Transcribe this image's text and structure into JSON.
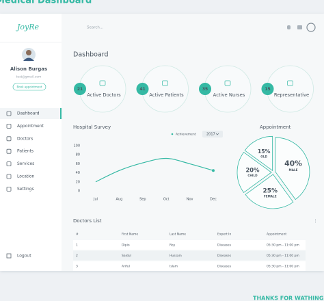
{
  "banner": {
    "title": "Medical Dashboard",
    "footer": "THANKS FOR WATHING"
  },
  "sidebar": {
    "logo": "JoyRe",
    "user": {
      "name": "Alison Burgas",
      "email": "test@gmail.com",
      "button": "Book appointment"
    },
    "menu": [
      "Dashboard",
      "Appointment",
      "Doctors",
      "Patients",
      "Services",
      "Location",
      "Settings"
    ],
    "logout": "Logout"
  },
  "topbar": {
    "search": "Search..."
  },
  "heading": "Dashboard",
  "stats": [
    {
      "value": 21,
      "label": "Active Doctors"
    },
    {
      "value": 41,
      "label": "Active Patients"
    },
    {
      "value": 35,
      "label": "Active Nurses"
    },
    {
      "value": 15,
      "label": "Representative"
    }
  ],
  "chart_data": [
    {
      "type": "line",
      "title": "Hospital Survey",
      "filter": "2017",
      "categories": [
        "Jul",
        "Aug",
        "Sep",
        "Oct",
        "Nov",
        "Dec"
      ],
      "series": [
        {
          "name": "Achievement",
          "color": "#35b9a4",
          "values": [
            20,
            45,
            62,
            72,
            60,
            45
          ]
        }
      ],
      "ylim": [
        0,
        100
      ],
      "yticks": [
        0,
        20,
        40,
        60,
        80,
        100
      ],
      "grid": false
    },
    {
      "type": "pie",
      "title": "Appointment",
      "categories": [
        "MALE",
        "FEMALE",
        "CHILD",
        "OLD"
      ],
      "values": [
        40,
        25,
        20,
        15
      ],
      "value_labels": [
        "40%",
        "25%",
        "20%",
        "15%"
      ],
      "color": "#35b9a4"
    }
  ],
  "table": {
    "title": "Doctors List",
    "columns": [
      "#",
      "First Name",
      "Last Name",
      "Expert In",
      "Appointment"
    ],
    "rows": [
      [
        "1",
        "Dipio",
        "Roy",
        "Diseases",
        "05:30 pm - 11:00 pm"
      ],
      [
        "2",
        "Saidul",
        "Hussain",
        "Diseases",
        "05:30 pm - 11:00 pm"
      ],
      [
        "3",
        "Ariful",
        "Islam",
        "Diseases",
        "05:30 pm - 11:00 pm"
      ]
    ]
  }
}
